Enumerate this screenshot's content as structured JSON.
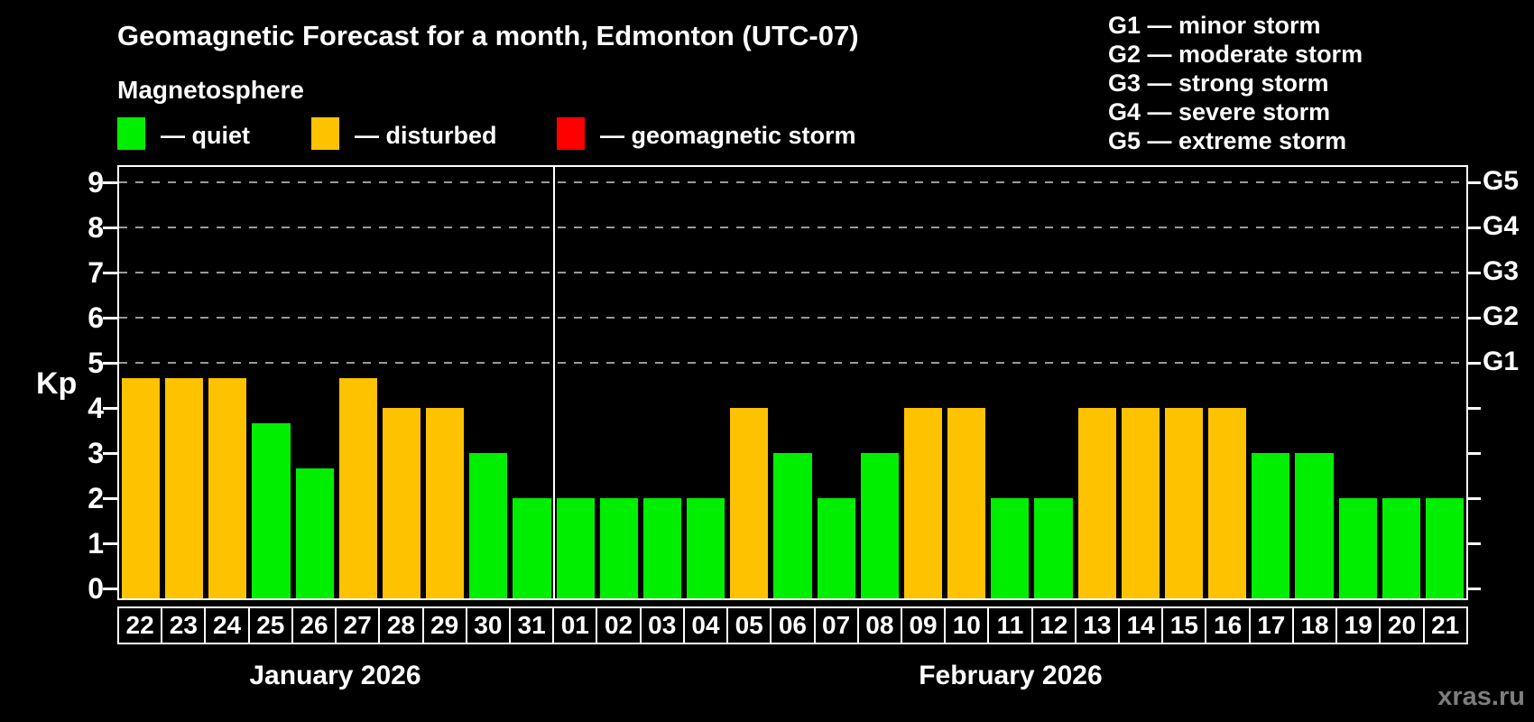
{
  "title": "Geomagnetic Forecast for a month, Edmonton (UTC-07)",
  "subtitle": "Magnetosphere",
  "legend": {
    "items": [
      {
        "key": "quiet",
        "label": "— quiet"
      },
      {
        "key": "disturbed",
        "label": "— disturbed"
      },
      {
        "key": "storm",
        "label": "— geomagnetic storm"
      }
    ]
  },
  "gscale": {
    "items": [
      "G1 — minor storm",
      "G2 — moderate storm",
      "G3 — strong storm",
      "G4 — severe storm",
      "G5 — extreme storm"
    ]
  },
  "colors": {
    "quiet": "#00ee00",
    "disturbed": "#ffc200",
    "storm": "#ff0000",
    "grid": "#9a9a9a",
    "axis": "#ffffff",
    "background": "#000000",
    "watermark": "#7d7d7d"
  },
  "watermark": "xras.ru",
  "chart_data": {
    "type": "bar",
    "title": "Geomagnetic Forecast for a month, Edmonton (UTC-07)",
    "subtitle": "Magnetosphere",
    "xlabel": "",
    "ylabel": "Kp",
    "ylim": [
      0,
      9.4
    ],
    "y_ticks": [
      0,
      1,
      2,
      3,
      4,
      5,
      6,
      7,
      8,
      9
    ],
    "grid": "horizontal dashed lines at Kp 5,6,7,8,9 only",
    "legend_position": "top",
    "g_thresholds": [
      {
        "label": "G1",
        "kp": 5
      },
      {
        "label": "G2",
        "kp": 6
      },
      {
        "label": "G3",
        "kp": 7
      },
      {
        "label": "G4",
        "kp": 8
      },
      {
        "label": "G5",
        "kp": 9
      }
    ],
    "months": [
      {
        "label": "January 2026",
        "days": 10
      },
      {
        "label": "February 2026",
        "days": 21
      }
    ],
    "categories": [
      "22",
      "23",
      "24",
      "25",
      "26",
      "27",
      "28",
      "29",
      "30",
      "31",
      "01",
      "02",
      "03",
      "04",
      "05",
      "06",
      "07",
      "08",
      "09",
      "10",
      "11",
      "12",
      "13",
      "14",
      "15",
      "16",
      "17",
      "18",
      "19",
      "20",
      "21"
    ],
    "values": [
      4.67,
      4.67,
      4.67,
      3.67,
      2.67,
      4.67,
      4,
      4,
      3,
      2,
      2,
      2,
      2,
      2,
      4,
      3,
      2,
      3,
      4,
      4,
      2,
      2,
      4,
      4,
      4,
      4,
      3,
      3,
      2,
      2,
      2
    ],
    "statuses": [
      "disturbed",
      "disturbed",
      "disturbed",
      "quiet",
      "quiet",
      "disturbed",
      "disturbed",
      "disturbed",
      "quiet",
      "quiet",
      "quiet",
      "quiet",
      "quiet",
      "quiet",
      "disturbed",
      "quiet",
      "quiet",
      "quiet",
      "disturbed",
      "disturbed",
      "quiet",
      "quiet",
      "disturbed",
      "disturbed",
      "disturbed",
      "disturbed",
      "quiet",
      "quiet",
      "quiet",
      "quiet",
      "quiet"
    ]
  }
}
